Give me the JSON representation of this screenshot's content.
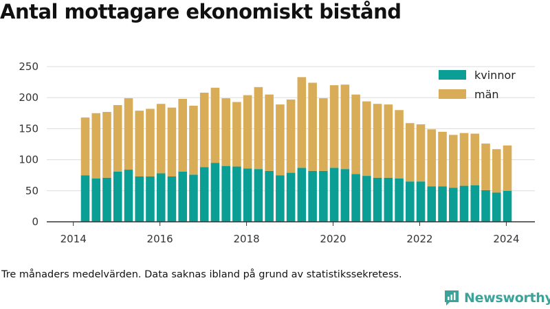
{
  "title": "Antal mottagare ekonomiskt bistånd",
  "note": "Tre månaders medelvärden. Data saknas ibland på grund av statistikssekretess.",
  "brand": {
    "name": "Newsworthy",
    "icon": "newsworthy-logo-icon"
  },
  "colors": {
    "kvinnor": "#0a9e94",
    "man": "#d9ac57",
    "grid": "#dcdcdc",
    "axis": "#333333"
  },
  "chart_data": {
    "type": "bar",
    "stacked": true,
    "x": [
      "2014-04",
      "2014-07",
      "2014-10",
      "2015-01",
      "2015-04",
      "2015-07",
      "2015-10",
      "2016-01",
      "2016-04",
      "2016-07",
      "2016-10",
      "2017-01",
      "2017-04",
      "2017-07",
      "2017-10",
      "2018-01",
      "2018-04",
      "2018-07",
      "2018-10",
      "2019-01",
      "2019-04",
      "2019-07",
      "2019-10",
      "2020-01",
      "2020-04",
      "2020-07",
      "2020-10",
      "2021-01",
      "2021-04",
      "2021-07",
      "2021-10",
      "2022-01",
      "2022-04",
      "2022-07",
      "2022-10",
      "2023-01",
      "2023-04",
      "2023-07",
      "2023-10",
      "2024-01"
    ],
    "series": [
      {
        "name": "kvinnor",
        "values": [
          75,
          70,
          71,
          81,
          84,
          73,
          73,
          78,
          73,
          81,
          76,
          88,
          95,
          90,
          89,
          86,
          85,
          82,
          75,
          79,
          87,
          82,
          82,
          87,
          85,
          77,
          74,
          71,
          71,
          70,
          65,
          65,
          57,
          57,
          55,
          58,
          59,
          51,
          47,
          50
        ]
      },
      {
        "name": "män",
        "values": [
          93,
          105,
          106,
          107,
          115,
          106,
          109,
          112,
          111,
          117,
          111,
          120,
          121,
          109,
          104,
          118,
          132,
          123,
          114,
          118,
          146,
          142,
          117,
          133,
          136,
          128,
          120,
          119,
          118,
          110,
          94,
          92,
          92,
          88,
          85,
          85,
          83,
          75,
          70,
          73
        ]
      }
    ],
    "xticks": [
      "2014",
      "2016",
      "2018",
      "2020",
      "2022",
      "2024"
    ],
    "yticks": [
      "0",
      "50",
      "100",
      "150",
      "200",
      "250"
    ],
    "ylim": [
      0,
      250
    ],
    "legend": [
      "kvinnor",
      "män"
    ],
    "legend_position": "top-right",
    "grid": "horizontal"
  }
}
